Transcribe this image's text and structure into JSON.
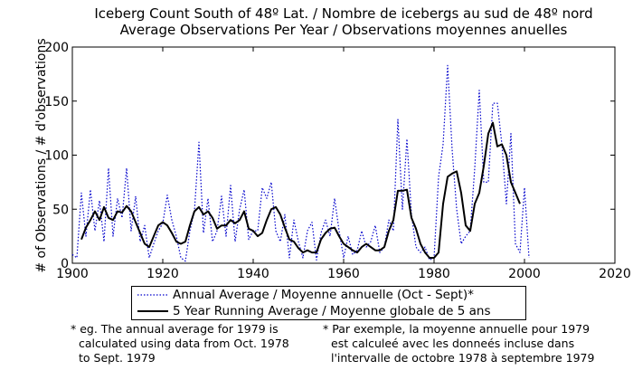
{
  "chart_data": {
    "type": "line",
    "title": "Iceberg Count South of 48º Lat. / Nombre de icebergs au sud de 48º nord",
    "subtitle": "Average Observations Per Year / Observations moyennes anuelles",
    "xlabel": "",
    "ylabel": "# of Observations / # d'observations",
    "xlim": [
      1900,
      2020
    ],
    "ylim": [
      0,
      200
    ],
    "x_ticks": [
      1900,
      1920,
      1940,
      1960,
      1980,
      2000,
      2020
    ],
    "y_ticks": [
      0,
      50,
      100,
      150,
      200
    ],
    "grid": false,
    "legend_position": "bottom",
    "series": [
      {
        "name": "Annual Average / Moyenne annuelle (Oct - Sept)*",
        "style": "dotted",
        "color": "#0000cc",
        "x": [
          1900,
          1901,
          1902,
          1903,
          1904,
          1905,
          1906,
          1907,
          1908,
          1909,
          1910,
          1911,
          1912,
          1913,
          1914,
          1915,
          1916,
          1917,
          1918,
          1919,
          1920,
          1921,
          1922,
          1923,
          1924,
          1925,
          1926,
          1927,
          1928,
          1929,
          1930,
          1931,
          1932,
          1933,
          1934,
          1935,
          1936,
          1937,
          1938,
          1939,
          1940,
          1941,
          1942,
          1943,
          1944,
          1945,
          1946,
          1947,
          1948,
          1949,
          1950,
          1951,
          1952,
          1953,
          1954,
          1955,
          1956,
          1957,
          1958,
          1959,
          1960,
          1961,
          1962,
          1963,
          1964,
          1965,
          1966,
          1967,
          1968,
          1969,
          1970,
          1971,
          1972,
          1973,
          1974,
          1975,
          1976,
          1977,
          1978,
          1979,
          1980,
          1981,
          1982,
          1983,
          1984,
          1985,
          1986,
          1987,
          1988,
          1989,
          1990,
          1991,
          1992,
          1993,
          1994,
          1995,
          1996,
          1997,
          1998,
          1999,
          2000,
          2001
        ],
        "values": [
          8,
          5,
          65,
          25,
          68,
          30,
          58,
          20,
          88,
          25,
          60,
          42,
          88,
          30,
          62,
          20,
          35,
          5,
          18,
          30,
          37,
          63,
          40,
          25,
          5,
          2,
          30,
          48,
          112,
          28,
          60,
          20,
          30,
          62,
          25,
          72,
          20,
          50,
          68,
          22,
          30,
          30,
          70,
          60,
          75,
          30,
          20,
          45,
          5,
          40,
          20,
          5,
          30,
          38,
          3,
          28,
          40,
          25,
          60,
          30,
          5,
          25,
          8,
          12,
          30,
          15,
          20,
          35,
          10,
          15,
          40,
          30,
          133,
          50,
          115,
          45,
          15,
          10,
          15,
          3,
          5,
          80,
          110,
          183,
          105,
          50,
          18,
          25,
          30,
          88,
          160,
          75,
          75,
          148,
          148,
          110,
          55,
          120,
          18,
          10,
          70,
          5
        ]
      },
      {
        "name": "5 Year Running Average / Moyenne globale de 5 ans",
        "style": "solid",
        "color": "#000000",
        "x": [
          1902,
          1903,
          1904,
          1905,
          1906,
          1907,
          1908,
          1909,
          1910,
          1911,
          1912,
          1913,
          1914,
          1915,
          1916,
          1917,
          1918,
          1919,
          1920,
          1921,
          1922,
          1923,
          1924,
          1925,
          1926,
          1927,
          1928,
          1929,
          1930,
          1931,
          1932,
          1933,
          1934,
          1935,
          1936,
          1937,
          1938,
          1939,
          1940,
          1941,
          1942,
          1943,
          1944,
          1945,
          1946,
          1947,
          1948,
          1949,
          1950,
          1951,
          1952,
          1953,
          1954,
          1955,
          1956,
          1957,
          1958,
          1959,
          1960,
          1961,
          1962,
          1963,
          1964,
          1965,
          1966,
          1967,
          1968,
          1969,
          1970,
          1971,
          1972,
          1973,
          1974,
          1975,
          1976,
          1977,
          1978,
          1979,
          1980,
          1981,
          1982,
          1983,
          1984,
          1985,
          1986,
          1987,
          1988,
          1989,
          1990,
          1991,
          1992,
          1993,
          1994,
          1995,
          1996,
          1997,
          1998,
          1999
        ],
        "values": [
          22,
          33,
          40,
          48,
          40,
          52,
          42,
          40,
          48,
          47,
          53,
          48,
          38,
          28,
          18,
          15,
          25,
          35,
          38,
          35,
          28,
          20,
          18,
          20,
          35,
          48,
          52,
          45,
          48,
          42,
          32,
          35,
          35,
          40,
          37,
          40,
          48,
          32,
          30,
          25,
          28,
          40,
          50,
          52,
          45,
          33,
          22,
          20,
          14,
          10,
          12,
          10,
          10,
          22,
          28,
          32,
          33,
          25,
          18,
          15,
          12,
          10,
          15,
          18,
          15,
          12,
          12,
          15,
          30,
          40,
          67,
          67,
          68,
          42,
          32,
          18,
          10,
          5,
          5,
          10,
          55,
          80,
          83,
          85,
          65,
          35,
          30,
          55,
          65,
          90,
          120,
          130,
          108,
          110,
          100,
          75,
          65,
          55
        ]
      }
    ]
  },
  "notes": {
    "en": [
      "* eg. The annual average for 1979 is",
      "calculated using data from Oct. 1978",
      "to Sept. 1979"
    ],
    "fr": [
      "* Par exemple, la moyenne annuelle pour 1979",
      "est calculeé avec les donneés incluse dans",
      "l'intervalle de octobre 1978 à septembre 1979"
    ]
  }
}
